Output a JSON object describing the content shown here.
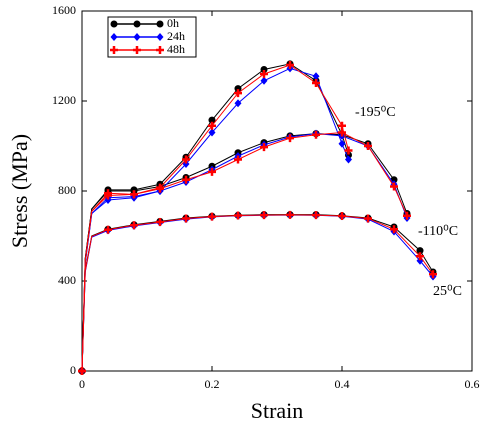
{
  "chart_data": {
    "type": "line",
    "xlabel": "Strain",
    "ylabel": "Stress (MPa)",
    "xlim": [
      0,
      0.6
    ],
    "xticks": [
      0,
      0.2,
      0.4,
      0.6
    ],
    "ylim": [
      0,
      1600
    ],
    "yticks": [
      0,
      400,
      800,
      1200,
      1600
    ],
    "legend": "upper left",
    "annotations": [
      "-195⁰C",
      "-110⁰C",
      "25⁰C"
    ],
    "series": [
      {
        "name": "0h",
        "color": "#000000",
        "marker": "circle",
        "curves": [
          {
            "x": [
              0,
              0.005,
              0.015,
              0.04,
              0.08,
              0.12,
              0.16,
              0.2,
              0.24,
              0.28,
              0.32,
              0.36,
              0.4,
              0.41
            ],
            "values": [
              0,
              500,
              720,
              805,
              805,
              830,
              950,
              1115,
              1255,
              1340,
              1365,
              1290,
              1050,
              960
            ]
          },
          {
            "x": [
              0,
              0.005,
              0.015,
              0.04,
              0.08,
              0.12,
              0.16,
              0.2,
              0.24,
              0.28,
              0.32,
              0.36,
              0.4,
              0.44,
              0.48,
              0.5
            ],
            "values": [
              0,
              500,
              720,
              800,
              800,
              820,
              860,
              910,
              970,
              1015,
              1045,
              1055,
              1050,
              1010,
              850,
              700
            ]
          },
          {
            "x": [
              0,
              0.005,
              0.015,
              0.04,
              0.08,
              0.12,
              0.16,
              0.2,
              0.24,
              0.28,
              0.32,
              0.36,
              0.4,
              0.44,
              0.48,
              0.52,
              0.54
            ],
            "values": [
              0,
              450,
              600,
              630,
              650,
              665,
              680,
              688,
              692,
              695,
              695,
              695,
              690,
              680,
              640,
              535,
              440
            ]
          }
        ]
      },
      {
        "name": "24h",
        "color": "#0000ff",
        "marker": "diamond",
        "curves": [
          {
            "x": [
              0,
              0.005,
              0.015,
              0.04,
              0.08,
              0.12,
              0.16,
              0.2,
              0.24,
              0.28,
              0.32,
              0.36,
              0.4,
              0.41
            ],
            "values": [
              0,
              480,
              700,
              770,
              775,
              800,
              920,
              1060,
              1190,
              1290,
              1345,
              1310,
              1010,
              940
            ]
          },
          {
            "x": [
              0,
              0.005,
              0.015,
              0.04,
              0.08,
              0.12,
              0.16,
              0.2,
              0.24,
              0.28,
              0.32,
              0.36,
              0.4,
              0.44,
              0.48,
              0.5
            ],
            "values": [
              0,
              480,
              700,
              760,
              770,
              800,
              840,
              895,
              955,
              1005,
              1040,
              1055,
              1045,
              1000,
              830,
              680
            ]
          },
          {
            "x": [
              0,
              0.005,
              0.015,
              0.04,
              0.08,
              0.12,
              0.16,
              0.2,
              0.24,
              0.28,
              0.32,
              0.36,
              0.4,
              0.44,
              0.48,
              0.52,
              0.54
            ],
            "values": [
              0,
              440,
              595,
              625,
              645,
              660,
              675,
              685,
              690,
              692,
              693,
              692,
              688,
              675,
              620,
              490,
              420
            ]
          }
        ]
      },
      {
        "name": "48h",
        "color": "#ff0000",
        "marker": "plus",
        "curves": [
          {
            "x": [
              0,
              0.005,
              0.015,
              0.04,
              0.08,
              0.12,
              0.16,
              0.2,
              0.24,
              0.28,
              0.32,
              0.36,
              0.4,
              0.41
            ],
            "values": [
              0,
              490,
              710,
              790,
              785,
              815,
              940,
              1090,
              1235,
              1320,
              1360,
              1280,
              1090,
              980
            ]
          },
          {
            "x": [
              0,
              0.005,
              0.015,
              0.04,
              0.08,
              0.12,
              0.16,
              0.2,
              0.24,
              0.28,
              0.32,
              0.36,
              0.4,
              0.44,
              0.48,
              0.5
            ],
            "values": [
              0,
              490,
              710,
              780,
              785,
              810,
              850,
              885,
              940,
              995,
              1035,
              1050,
              1060,
              1000,
              820,
              690
            ]
          },
          {
            "x": [
              0,
              0.005,
              0.015,
              0.04,
              0.08,
              0.12,
              0.16,
              0.2,
              0.24,
              0.28,
              0.32,
              0.36,
              0.4,
              0.44,
              0.48,
              0.52,
              0.54
            ],
            "values": [
              0,
              445,
              598,
              628,
              648,
              662,
              678,
              686,
              691,
              693,
              694,
              693,
              689,
              678,
              630,
              510,
              430
            ]
          }
        ]
      }
    ]
  }
}
